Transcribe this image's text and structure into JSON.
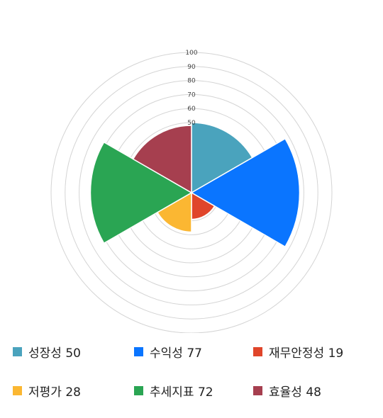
{
  "chart_data": {
    "type": "polar-area",
    "categories": [
      "성장성",
      "수익성",
      "재무안정성",
      "저평가",
      "추세지표",
      "효율성"
    ],
    "values": [
      50,
      77,
      19,
      28,
      72,
      48
    ],
    "colors": [
      "#4aa3bd",
      "#0a75ff",
      "#e0452a",
      "#fbb732",
      "#2aa553",
      "#a63f4f"
    ],
    "rlim": [
      0,
      100
    ],
    "tick_labels": [
      "100",
      "90",
      "80",
      "70",
      "60",
      "50"
    ],
    "grid": true,
    "legend_position": "bottom"
  },
  "legend": [
    {
      "label": "성장성 50",
      "color": "#4aa3bd"
    },
    {
      "label": "수익성 77",
      "color": "#0a75ff"
    },
    {
      "label": "재무안정성 19",
      "color": "#e0452a"
    },
    {
      "label": "저평가 28",
      "color": "#fbb732"
    },
    {
      "label": "추세지표 72",
      "color": "#2aa553"
    },
    {
      "label": "효율성 48",
      "color": "#a63f4f"
    }
  ]
}
